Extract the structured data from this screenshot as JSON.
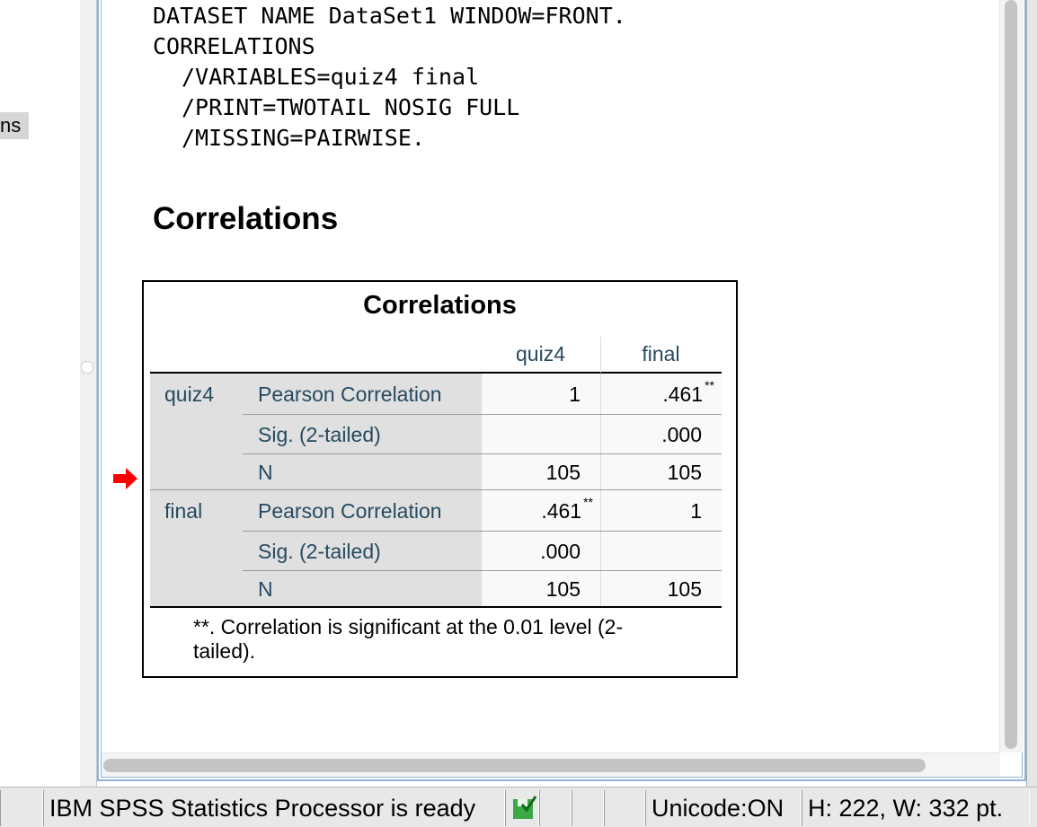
{
  "sidebar": {
    "item": "ns"
  },
  "syntax": [
    {
      "text": "DATASET NAME DataSet1 WINDOW=FRONT.",
      "indent": false
    },
    {
      "text": "CORRELATIONS",
      "indent": false
    },
    {
      "text": "/VARIABLES=quiz4 final",
      "indent": true
    },
    {
      "text": "/PRINT=TWOTAIL NOSIG FULL",
      "indent": true
    },
    {
      "text": "/MISSING=PAIRWISE.",
      "indent": true
    }
  ],
  "heading": "Correlations",
  "table": {
    "title": "Correlations",
    "columns": [
      "quiz4",
      "final"
    ],
    "groups": [
      {
        "label": "quiz4",
        "rows": [
          {
            "stat": "Pearson Correlation",
            "cells": [
              {
                "value": "1"
              },
              {
                "value": ".461",
                "sig": "**"
              }
            ]
          },
          {
            "stat": "Sig. (2-tailed)",
            "cells": [
              {
                "value": ""
              },
              {
                "value": ".000"
              }
            ]
          },
          {
            "stat": "N",
            "cells": [
              {
                "value": "105"
              },
              {
                "value": "105"
              }
            ]
          }
        ]
      },
      {
        "label": "final",
        "rows": [
          {
            "stat": "Pearson Correlation",
            "cells": [
              {
                "value": ".461",
                "sig": "**"
              },
              {
                "value": "1"
              }
            ]
          },
          {
            "stat": "Sig. (2-tailed)",
            "cells": [
              {
                "value": ".000"
              },
              {
                "value": ""
              }
            ]
          },
          {
            "stat": "N",
            "cells": [
              {
                "value": "105"
              },
              {
                "value": "105"
              }
            ]
          }
        ]
      }
    ],
    "footnote": "**. Correlation is significant at the 0.01 level (2-tailed)."
  },
  "status_bar": {
    "message": "IBM SPSS Statistics Processor is ready",
    "encoding": "Unicode:ON",
    "size": "H: 222, W: 332 pt."
  }
}
